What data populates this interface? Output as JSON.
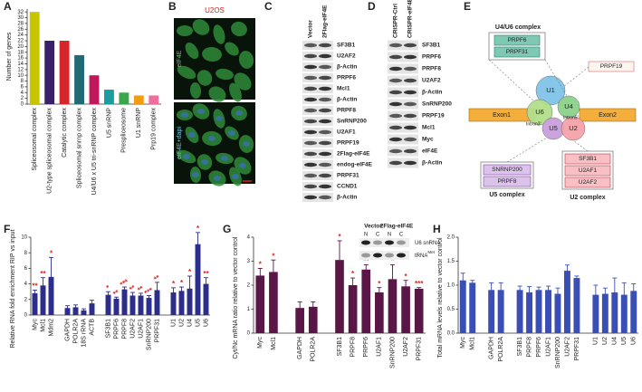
{
  "chart_data": [
    {
      "type": "bar",
      "label": "A",
      "ylabel": "Number of genes",
      "categories": [
        "Spliceosomal complex",
        "U2-type spliceosomal complex",
        "Catalytic complex",
        "Spliceosomal snrnp complex",
        "U4/U6 x U5 tri-snRNP complex",
        "U5 snRNP",
        "Prespliceosome",
        "U1 snRNP",
        "Prp19 complex"
      ],
      "values": [
        32,
        22,
        22,
        17,
        10,
        5,
        4,
        3,
        3
      ],
      "colors": [
        "#c9c400",
        "#3a1f6b",
        "#d7262b",
        "#1f6a75",
        "#c2185b",
        "#1a9ca0",
        "#3aa84a",
        "#f39c12",
        "#ee6f9d"
      ],
      "ylim": [
        0,
        33
      ],
      "yticks": [
        0,
        2,
        4,
        6,
        8,
        10,
        12,
        14,
        16,
        18,
        20,
        22,
        24,
        26,
        28,
        30,
        32
      ]
    },
    {
      "type": "bar",
      "label": "F",
      "ylabel": "Relative RNA fold enrichment RIP vs input",
      "color": "#2d2d8c",
      "categories": [
        "Myc",
        "Mcl1",
        "Mdm2",
        null,
        "GAPDH",
        "POLR2A",
        "18S rRNA",
        "ACTB",
        null,
        "SF3B1",
        "PRPF6",
        "PRPF8",
        "U2AF2",
        "U2AF1",
        "SnRNP200",
        "PRPF31",
        null,
        "U1",
        "U2",
        "U4",
        "U5",
        "U6"
      ],
      "values": [
        2.8,
        3.8,
        4.9,
        null,
        0.9,
        1.0,
        0.6,
        1.5,
        null,
        2.6,
        2.1,
        3.3,
        2.5,
        2.5,
        2.2,
        3.2,
        null,
        2.9,
        3.1,
        3.4,
        9.1,
        4.0
      ],
      "errors": [
        0.4,
        1.0,
        2.5,
        null,
        0.3,
        0.3,
        0.2,
        0.4,
        null,
        0.4,
        0.2,
        0.3,
        0.4,
        0.3,
        0.3,
        1.0,
        null,
        0.6,
        0.5,
        1.6,
        1.5,
        0.8
      ],
      "annotations": [
        "**",
        "**",
        "*",
        null,
        null,
        null,
        null,
        null,
        null,
        "*",
        "**",
        "***",
        "**",
        "**",
        "***",
        "**",
        null,
        "*",
        "*",
        "*",
        "*",
        "**"
      ],
      "ylim": [
        0,
        10
      ],
      "yticks": [
        0,
        2,
        4,
        6,
        8,
        10
      ]
    },
    {
      "type": "bar",
      "label": "G",
      "ylabel": "Cyt/Nc mRNA ratio relative to vector control",
      "color": "#5a1646",
      "categories": [
        "Myc",
        "Mcl1",
        null,
        "GAPDH",
        "POLR2A",
        null,
        "SF3B1",
        "PRPF8",
        "PRPF6",
        "U2AF1",
        "SnRNP200",
        "U2AF2",
        "PRPF31"
      ],
      "values": [
        2.4,
        2.55,
        null,
        1.05,
        1.1,
        null,
        3.05,
        2.0,
        2.65,
        1.7,
        2.25,
        1.95,
        1.85
      ],
      "errors": [
        0.3,
        0.5,
        null,
        0.25,
        0.2,
        null,
        0.8,
        0.3,
        0.2,
        0.2,
        0.6,
        0.25,
        0.05
      ],
      "annotations": [
        "*",
        "*",
        null,
        null,
        null,
        null,
        "*",
        "*",
        "**",
        "*",
        "*",
        "*",
        "***"
      ],
      "ylim": [
        0,
        4
      ],
      "yticks": [
        0,
        1,
        2,
        3,
        4
      ],
      "inset": {
        "columns": [
          "Vector",
          "2Flag-eIF4E"
        ],
        "lanes": [
          "N",
          "C",
          "N",
          "C"
        ],
        "rows": [
          {
            "name": "U6 snRNA"
          },
          {
            "name": "tRNA",
            "sup": "Met"
          }
        ]
      }
    },
    {
      "type": "bar",
      "label": "H",
      "ylabel": "Total mRNA levels relative to vector control",
      "color": "#3a4fb5",
      "categories": [
        "Myc",
        "Mcl1",
        null,
        "GAPDH",
        "POLR2A",
        null,
        "SF3B1",
        "PRPF8",
        "PRPF6",
        "U2AF1",
        "SnRNP200",
        "U2AF2",
        "PRPF31",
        null,
        "U1",
        "U2",
        "U4",
        "U5",
        "U6"
      ],
      "values": [
        1.1,
        1.05,
        null,
        0.9,
        0.9,
        null,
        0.9,
        0.85,
        0.9,
        0.9,
        0.82,
        1.3,
        1.15,
        null,
        0.8,
        0.82,
        0.85,
        0.8,
        0.88
      ],
      "errors": [
        0.15,
        0.05,
        null,
        0.15,
        0.15,
        null,
        0.08,
        0.12,
        0.06,
        0.08,
        0.12,
        0.12,
        0.04,
        null,
        0.2,
        0.12,
        0.3,
        0.25,
        0.15
      ],
      "ylim": [
        0,
        2
      ],
      "yticks": [
        {
          "value": 0,
          "label": "0.0"
        },
        {
          "value": 0.5,
          "label": "0.5"
        },
        {
          "value": 1,
          "label": "1.0"
        },
        {
          "value": 1.5,
          "label": "1.5"
        },
        {
          "value": 2,
          "label": "2.0"
        }
      ]
    }
  ],
  "images": {
    "label": "B",
    "title": "U2OS",
    "channels": [
      "eIF4E",
      "eIF4E+dapi"
    ]
  },
  "blots": [
    {
      "label": "C",
      "columns": [
        "Vector",
        "2Flag-eIF4E"
      ],
      "rows": [
        "SF3B1",
        "U2AF2",
        "β-Actin",
        "PRPF6",
        "Mcl1",
        "β-Actin",
        "PRPF8",
        "SnRNP200",
        "U2AF1",
        "PRPF19",
        "2Flag-eIF4E",
        "endog-eIF4E",
        "PRPF31",
        "CCND1",
        "β-Actin"
      ]
    },
    {
      "label": "D",
      "columns": [
        "CRISPR-Ctrl",
        "CRISPR-eIF4E"
      ],
      "rows": [
        "SF3B1",
        "PRPF6",
        "PRPF8",
        "U2AF2",
        "β-Actin",
        "SnRNP200",
        "PRPF19",
        "Mcl1",
        "Myc",
        "eIF4E",
        "β-Actin"
      ]
    }
  ],
  "diagram": {
    "label": "E",
    "u4u6": {
      "title": "U4/U6 complex",
      "proteins": [
        "PRPF6",
        "PRPF31"
      ]
    },
    "prp19": "PRPF19",
    "snrnps": [
      "U1",
      "U4",
      "U6",
      "U5",
      "U2"
    ],
    "introns": [
      "Intron5'",
      "Intron3'"
    ],
    "exons": [
      "Exon1",
      "Exon2"
    ],
    "u5": {
      "title": "U5 complex",
      "proteins": [
        "SNRNP200",
        "PRPF8"
      ]
    },
    "u2": {
      "title": "U2 complex",
      "proteins": [
        "SF3B1",
        "U2AF1",
        "U2AF2"
      ]
    }
  }
}
